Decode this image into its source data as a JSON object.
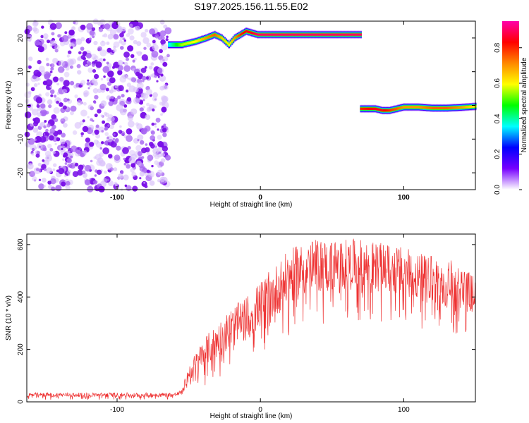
{
  "title": "S197.2025.156.11.55.E02",
  "chart_data": [
    {
      "type": "heatmap",
      "name": "spectrogram",
      "xlabel": "Height of straight line (km)",
      "ylabel": "Frequency (Hz)",
      "xlim": [
        -163,
        150
      ],
      "ylim": [
        -25,
        25
      ],
      "x_ticks": [
        -100,
        0,
        100
      ],
      "y_ticks": [
        -20,
        -10,
        0,
        10,
        20
      ],
      "colorbar": {
        "label": "Normalized spectral amplitude",
        "range": [
          0,
          0.95
        ],
        "ticks": [
          0.0,
          0.2,
          0.4,
          0.6,
          0.8
        ],
        "colors": [
          "#ffffff",
          "#7700ff",
          "#0000ff",
          "#00ffff",
          "#00ff00",
          "#ffff00",
          "#ff8800",
          "#ff0000",
          "#ff00aa"
        ]
      },
      "noise_region": {
        "x": [
          -163,
          -64
        ],
        "y": [
          -25,
          25
        ],
        "amplitude": 0.1
      },
      "tracks": [
        {
          "x": [
            -64,
            -55,
            -45,
            -38,
            -32,
            -27,
            -22,
            -18,
            -14,
            -10,
            -6,
            -2,
            2,
            10,
            30,
            50,
            70
          ],
          "y": [
            18,
            18,
            19,
            20,
            21,
            20,
            18,
            20,
            21,
            22,
            21.5,
            21,
            21,
            21,
            21,
            21,
            21
          ],
          "amplitude": [
            0.35,
            0.55,
            0.6,
            0.7,
            0.75,
            0.65,
            0.6,
            0.7,
            0.8,
            0.85,
            0.85,
            0.9,
            0.9,
            0.9,
            0.9,
            0.9,
            0.9
          ]
        },
        {
          "x": [
            70,
            80,
            85,
            90,
            95,
            100,
            110,
            120,
            130,
            140,
            150
          ],
          "y": [
            -1,
            -1,
            -1.5,
            -1.5,
            -1,
            -0.5,
            -0.5,
            -0.8,
            -0.8,
            -0.6,
            -0.3
          ],
          "amplitude": [
            0.8,
            0.85,
            0.85,
            0.8,
            0.75,
            0.7,
            0.7,
            0.75,
            0.75,
            0.7,
            0.6
          ]
        }
      ]
    },
    {
      "type": "line",
      "name": "snr",
      "xlabel": "Height of straight line (km)",
      "ylabel": "SNR (10 * v/v)",
      "xlim": [
        -163,
        150
      ],
      "ylim": [
        0,
        640
      ],
      "x_ticks": [
        -100,
        0,
        100
      ],
      "y_ticks": [
        0,
        200,
        400,
        600
      ],
      "color": "#ee3333",
      "envelope": {
        "x": [
          -163,
          -60,
          -55,
          -50,
          -40,
          -30,
          -20,
          -10,
          0,
          10,
          20,
          30,
          40,
          50,
          60,
          70,
          80,
          90,
          100,
          110,
          120,
          130,
          140,
          150
        ],
        "upper": [
          35,
          35,
          45,
          140,
          240,
          300,
          360,
          400,
          460,
          520,
          580,
          610,
          620,
          620,
          620,
          620,
          610,
          600,
          590,
          570,
          560,
          550,
          520,
          480
        ],
        "lower": [
          5,
          5,
          10,
          20,
          40,
          60,
          80,
          100,
          130,
          160,
          200,
          230,
          250,
          260,
          270,
          270,
          270,
          260,
          250,
          240,
          230,
          230,
          220,
          200
        ]
      }
    }
  ]
}
